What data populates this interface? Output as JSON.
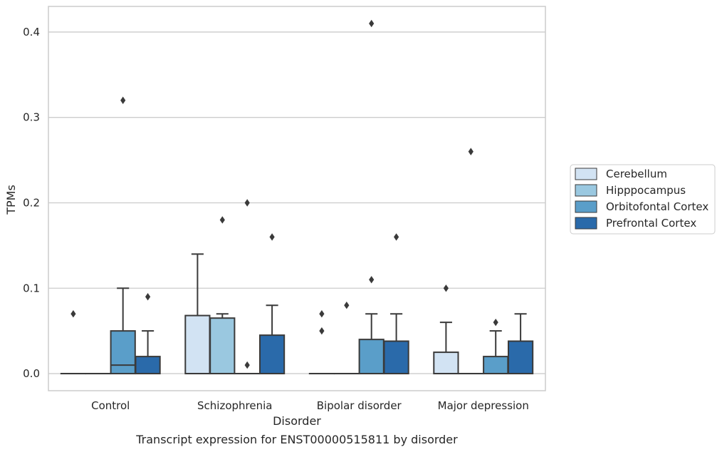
{
  "chart_data": {
    "type": "box",
    "title": "",
    "caption": "Transcript expression for ENST00000515811 by disorder",
    "xlabel": "Disorder",
    "ylabel": "TPMs",
    "ylim": [
      -0.02,
      0.43
    ],
    "yticks": [
      0.0,
      0.1,
      0.2,
      0.3,
      0.4
    ],
    "ytick_labels": [
      "0.0",
      "0.1",
      "0.2",
      "0.3",
      "0.4"
    ],
    "grid": "horizontal",
    "legend_position": "right",
    "categories": [
      "Control",
      "Schizophrenia",
      "Bipolar disorder",
      "Major depression"
    ],
    "series": [
      {
        "name": "Cerebellum",
        "color": "#d2e3f3",
        "boxes": [
          {
            "q1": 0.0,
            "median": 0.0,
            "q3": 0.0,
            "whisker_low": 0.0,
            "whisker_high": 0.0,
            "outliers": [
              0.07
            ]
          },
          {
            "q1": 0.0,
            "median": 0.0,
            "q3": 0.068,
            "whisker_low": 0.0,
            "whisker_high": 0.14,
            "outliers": []
          },
          {
            "q1": 0.0,
            "median": 0.0,
            "q3": 0.0,
            "whisker_low": 0.0,
            "whisker_high": 0.0,
            "outliers": [
              0.05,
              0.07
            ]
          },
          {
            "q1": 0.0,
            "median": 0.0,
            "q3": 0.025,
            "whisker_low": 0.0,
            "whisker_high": 0.06,
            "outliers": [
              0.1
            ]
          }
        ]
      },
      {
        "name": "Hipppocampus",
        "color": "#9ac8e0",
        "boxes": [
          {
            "q1": 0.0,
            "median": 0.0,
            "q3": 0.0,
            "whisker_low": 0.0,
            "whisker_high": 0.0,
            "outliers": []
          },
          {
            "q1": 0.0,
            "median": 0.0,
            "q3": 0.065,
            "whisker_low": 0.0,
            "whisker_high": 0.07,
            "outliers": [
              0.18
            ]
          },
          {
            "q1": 0.0,
            "median": 0.0,
            "q3": 0.0,
            "whisker_low": 0.0,
            "whisker_high": 0.0,
            "outliers": [
              0.08
            ]
          },
          {
            "q1": 0.0,
            "median": 0.0,
            "q3": 0.0,
            "whisker_low": 0.0,
            "whisker_high": 0.0,
            "outliers": [
              0.26
            ]
          }
        ]
      },
      {
        "name": "Orbitofontal Cortex",
        "color": "#5a9ec9",
        "boxes": [
          {
            "q1": 0.0,
            "median": 0.01,
            "q3": 0.05,
            "whisker_low": 0.0,
            "whisker_high": 0.1,
            "outliers": [
              0.32
            ]
          },
          {
            "q1": 0.0,
            "median": 0.0,
            "q3": 0.0,
            "whisker_low": 0.0,
            "whisker_high": 0.0,
            "outliers": [
              0.01,
              0.2
            ]
          },
          {
            "q1": 0.0,
            "median": 0.0,
            "q3": 0.04,
            "whisker_low": 0.0,
            "whisker_high": 0.07,
            "outliers": [
              0.11,
              0.41
            ]
          },
          {
            "q1": 0.0,
            "median": 0.0,
            "q3": 0.02,
            "whisker_low": 0.0,
            "whisker_high": 0.05,
            "outliers": [
              0.06
            ]
          }
        ]
      },
      {
        "name": "Prefrontal Cortex",
        "color": "#2a6aaa",
        "boxes": [
          {
            "q1": 0.0,
            "median": 0.0,
            "q3": 0.02,
            "whisker_low": 0.0,
            "whisker_high": 0.05,
            "outliers": [
              0.09
            ]
          },
          {
            "q1": 0.0,
            "median": 0.0,
            "q3": 0.045,
            "whisker_low": 0.0,
            "whisker_high": 0.08,
            "outliers": [
              0.16
            ]
          },
          {
            "q1": 0.0,
            "median": 0.0,
            "q3": 0.038,
            "whisker_low": 0.0,
            "whisker_high": 0.07,
            "outliers": [
              0.16
            ]
          },
          {
            "q1": 0.0,
            "median": 0.0,
            "q3": 0.038,
            "whisker_low": 0.0,
            "whisker_high": 0.07,
            "outliers": []
          }
        ]
      }
    ]
  }
}
